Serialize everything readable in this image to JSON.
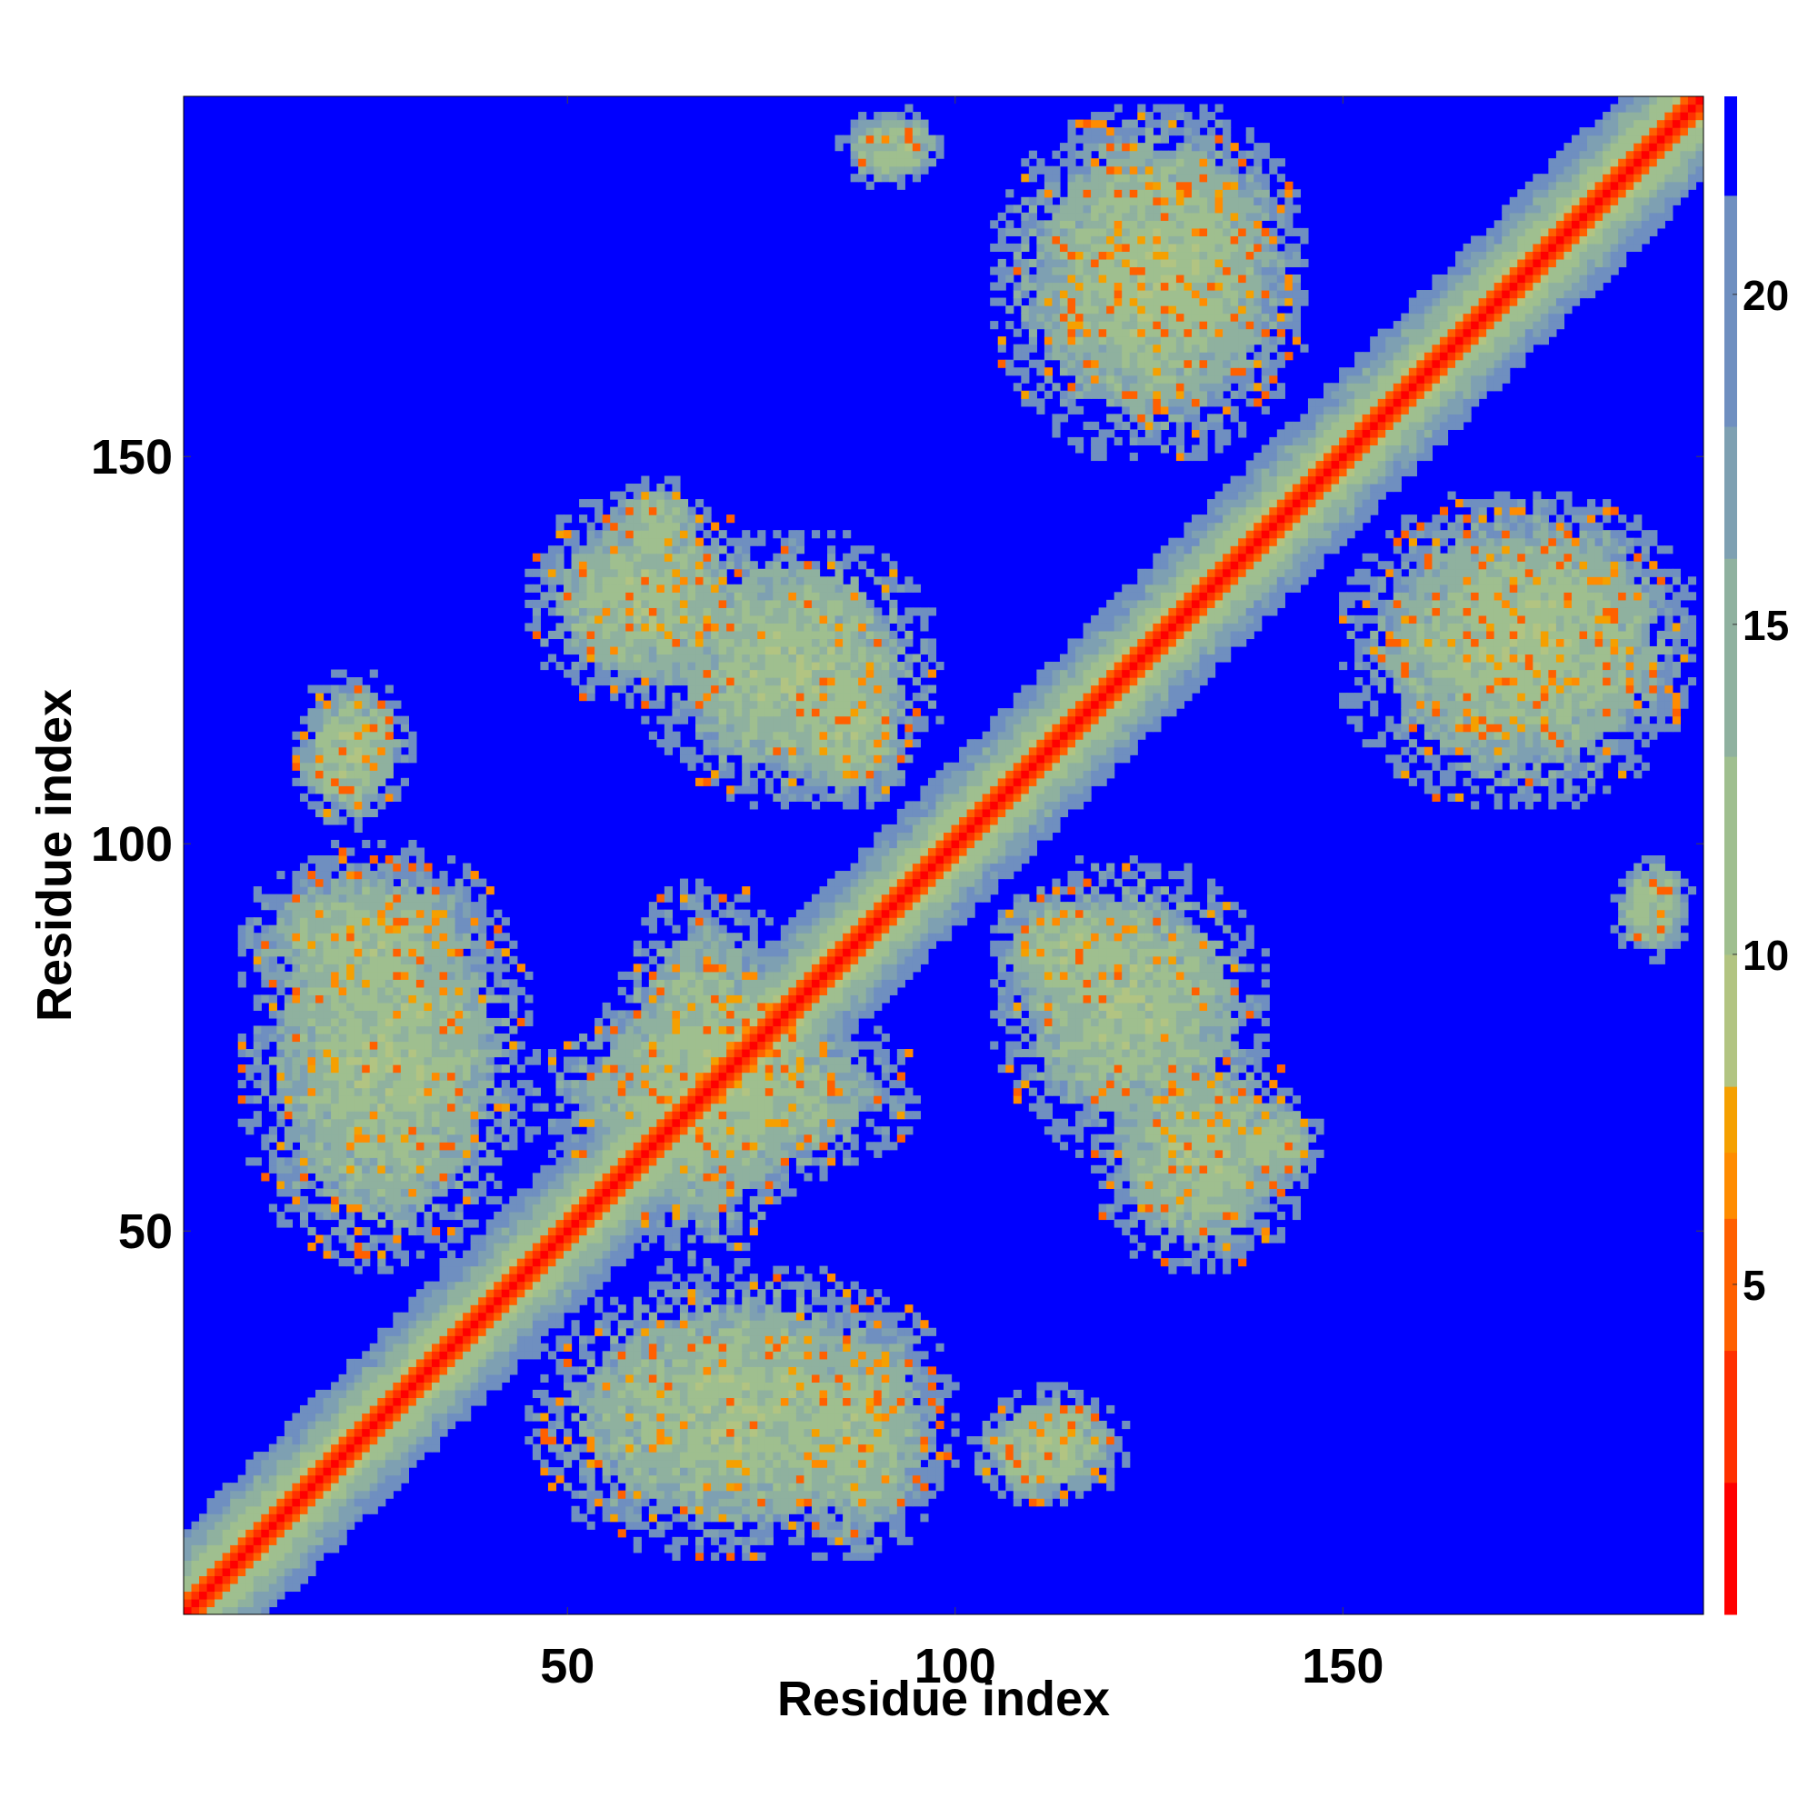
{
  "chart_data": {
    "type": "heatmap",
    "title": "",
    "xlabel": "Residue index",
    "ylabel": "Residue index",
    "n_residues": 196,
    "xlim": [
      1,
      196
    ],
    "ylim": [
      1,
      196
    ],
    "x_ticks": [
      50,
      100,
      150
    ],
    "y_ticks": [
      50,
      100,
      150
    ],
    "colorbar": {
      "ticks": [
        5,
        10,
        15,
        20
      ],
      "range": [
        0,
        23
      ],
      "levels": [
        {
          "min": 0,
          "max": 2,
          "color": "#ff0000"
        },
        {
          "min": 2,
          "max": 4,
          "color": "#ff3000"
        },
        {
          "min": 4,
          "max": 6,
          "color": "#ff6000"
        },
        {
          "min": 6,
          "max": 7,
          "color": "#ff8c00"
        },
        {
          "min": 7,
          "max": 8,
          "color": "#f5a000"
        },
        {
          "min": 8,
          "max": 10,
          "color": "#b2c482"
        },
        {
          "min": 10,
          "max": 13,
          "color": "#9fbf8f"
        },
        {
          "min": 13,
          "max": 16,
          "color": "#8fb19f"
        },
        {
          "min": 16,
          "max": 18,
          "color": "#7ea0b2"
        },
        {
          "min": 18,
          "max": 21.5,
          "color": "#6f8fc0"
        },
        {
          "min": 21.5,
          "max": 23,
          "color": "#0000ff"
        }
      ]
    },
    "background_color": "#0000ff",
    "contact_regions": [
      {
        "x": [
          1,
          196
        ],
        "y": [
          1,
          196
        ],
        "note": "diagonal band"
      },
      {
        "x": [
          8,
          40
        ],
        "y": [
          78,
          98
        ]
      },
      {
        "x": [
          15,
          30
        ],
        "y": [
          104,
          122
        ]
      },
      {
        "x": [
          45,
          100
        ],
        "y": [
          8,
          45
        ]
      },
      {
        "x": [
          55,
          80
        ],
        "y": [
          45,
          95
        ]
      },
      {
        "x": [
          45,
          75
        ],
        "y": [
          118,
          145
        ]
      },
      {
        "x": [
          78,
          95
        ],
        "y": [
          105,
          123
        ]
      },
      {
        "x": [
          85,
          95
        ],
        "y": [
          185,
          195
        ]
      },
      {
        "x": [
          102,
          120
        ],
        "y": [
          15,
          28
        ]
      },
      {
        "x": [
          105,
          140
        ],
        "y": [
          60,
          98
        ]
      },
      {
        "x": [
          135,
          147
        ],
        "y": [
          55,
          68
        ]
      },
      {
        "x": [
          110,
          145
        ],
        "y": [
          155,
          195
        ]
      },
      {
        "x": [
          150,
          195
        ],
        "y": [
          105,
          145
        ]
      },
      {
        "x": [
          185,
          195
        ],
        "y": [
          88,
          98
        ]
      }
    ]
  }
}
